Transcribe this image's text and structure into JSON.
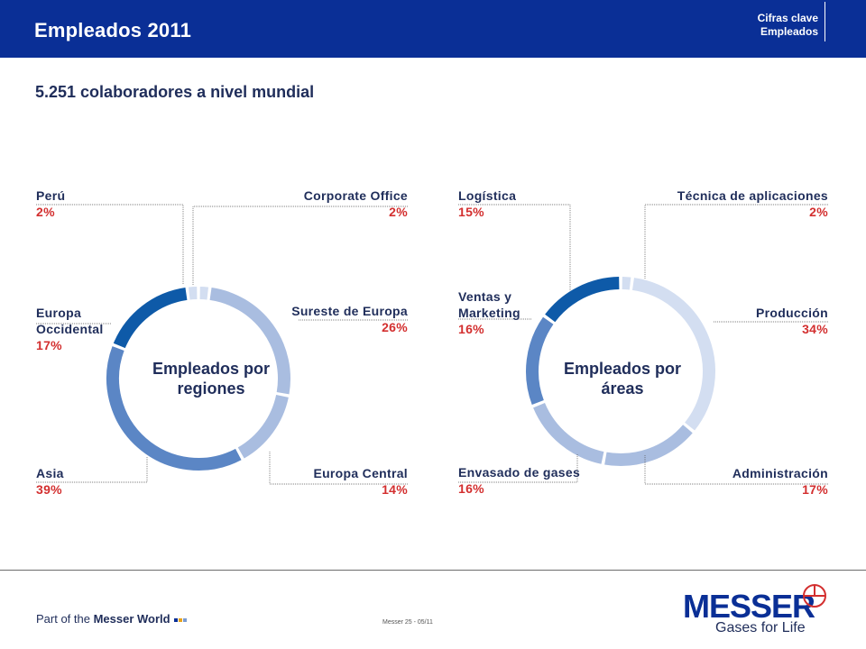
{
  "header": {
    "title": "Empleados 2011",
    "tag_line1": "Cifras clave",
    "tag_line2": "Empleados"
  },
  "subtitle": "5.251 colaboradores a nivel mundial",
  "colors": {
    "header_bg": "#0a2f96",
    "label_text": "#1f2d5a",
    "percent_text": "#d32f2f",
    "ring_dark": "#0e5aa8",
    "ring_mid": "#5b86c5",
    "ring_light": "#a9bde0",
    "ring_pale": "#d3def1"
  },
  "chart_data": [
    {
      "type": "pie",
      "center_label_line1": "Empleados por",
      "center_label_line2": "regiones",
      "series": [
        {
          "name": "Corporate Office",
          "value": 2,
          "label": "2%"
        },
        {
          "name": "Sureste de Europa",
          "value": 26,
          "label": "26%"
        },
        {
          "name": "Europa Central",
          "value": 14,
          "label": "14%"
        },
        {
          "name": "Asia",
          "value": 39,
          "label": "39%"
        },
        {
          "name": "Europa Occidental",
          "value": 17,
          "label": "17%"
        },
        {
          "name": "Perú",
          "value": 2,
          "label": "2%"
        }
      ],
      "labels": {
        "peru": {
          "name": "Perú",
          "pct": "2%"
        },
        "corporate": {
          "name": "Corporate Office",
          "pct": "2%"
        },
        "europa_occ": {
          "name1": "Europa",
          "name2": "Occidental",
          "pct": "17%"
        },
        "sureste": {
          "name": "Sureste de Europa",
          "pct": "26%"
        },
        "asia": {
          "name": "Asia",
          "pct": "39%"
        },
        "europa_central": {
          "name": "Europa Central",
          "pct": "14%"
        }
      }
    },
    {
      "type": "pie",
      "center_label_line1": "Empleados por",
      "center_label_line2": "áreas",
      "series": [
        {
          "name": "Técnica de aplicaciones",
          "value": 2,
          "label": "2%"
        },
        {
          "name": "Producción",
          "value": 34,
          "label": "34%"
        },
        {
          "name": "Administración",
          "value": 17,
          "label": "17%"
        },
        {
          "name": "Envasado de gases",
          "value": 16,
          "label": "16%"
        },
        {
          "name": "Ventas y Marketing",
          "value": 16,
          "label": "16%"
        },
        {
          "name": "Logística",
          "value": 15,
          "label": "15%"
        }
      ],
      "labels": {
        "logistica": {
          "name": "Logística",
          "pct": "15%"
        },
        "tecnica": {
          "name": "Técnica de aplicaciones",
          "pct": "2%"
        },
        "ventas": {
          "name1": "Ventas y",
          "name2": "Marketing",
          "pct": "16%"
        },
        "produccion": {
          "name": "Producción",
          "pct": "34%"
        },
        "envasado": {
          "name": "Envasado de gases",
          "pct": "16%"
        },
        "administracion": {
          "name": "Administración",
          "pct": "17%"
        }
      }
    }
  ],
  "footer": {
    "brand_prefix": "Part of the ",
    "brand_bold": "Messer World",
    "page": "Messer 25  -  05/11",
    "logo_word": "MESSER",
    "logo_slogan": "Gases for Life"
  }
}
